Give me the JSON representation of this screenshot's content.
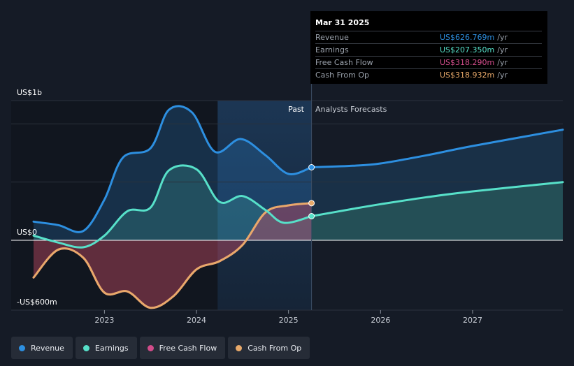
{
  "chart_data": {
    "type": "line",
    "y_labels": {
      "top": "US$1b",
      "zero": "US$0",
      "bottom": "-US$600m"
    },
    "ylim": [
      -600,
      1200
    ],
    "xlim": [
      2022.23,
      2027.98
    ],
    "x_ticks": [
      2023,
      2024,
      2025,
      2026,
      2027
    ],
    "x_tick_labels": [
      "2023",
      "2024",
      "2025",
      "2026",
      "2027"
    ],
    "divider_x": 2025.25,
    "past_start_x": 2024.23,
    "section_labels": {
      "past": "Past",
      "forecast": "Analysts Forecasts"
    },
    "series": [
      {
        "name": "Revenue",
        "color": "#2d8fe0",
        "points": [
          [
            2022.23,
            160
          ],
          [
            2022.5,
            130
          ],
          [
            2022.77,
            80
          ],
          [
            2023.0,
            350
          ],
          [
            2023.2,
            710
          ],
          [
            2023.5,
            790
          ],
          [
            2023.7,
            1120
          ],
          [
            2023.95,
            1100
          ],
          [
            2024.2,
            760
          ],
          [
            2024.48,
            870
          ],
          [
            2024.75,
            730
          ],
          [
            2025.0,
            570
          ],
          [
            2025.25,
            627
          ]
        ],
        "forecast": [
          [
            2025.25,
            627
          ],
          [
            2025.7,
            640
          ],
          [
            2026.0,
            660
          ],
          [
            2026.5,
            730
          ],
          [
            2027.0,
            810
          ],
          [
            2027.98,
            950
          ]
        ]
      },
      {
        "name": "Earnings",
        "color": "#57e0c9",
        "points": [
          [
            2022.23,
            40
          ],
          [
            2022.5,
            -20
          ],
          [
            2022.77,
            -60
          ],
          [
            2023.0,
            40
          ],
          [
            2023.25,
            250
          ],
          [
            2023.5,
            280
          ],
          [
            2023.7,
            600
          ],
          [
            2024.0,
            610
          ],
          [
            2024.25,
            330
          ],
          [
            2024.5,
            380
          ],
          [
            2024.75,
            260
          ],
          [
            2024.95,
            150
          ],
          [
            2025.25,
            207
          ]
        ],
        "forecast": [
          [
            2025.25,
            207
          ],
          [
            2025.7,
            270
          ],
          [
            2026.0,
            310
          ],
          [
            2026.5,
            370
          ],
          [
            2027.0,
            420
          ],
          [
            2027.98,
            500
          ]
        ]
      },
      {
        "name": "Free Cash Flow",
        "color": "#d14c8a",
        "points": [
          [
            2022.23,
            -320
          ],
          [
            2022.5,
            -80
          ],
          [
            2022.77,
            -150
          ],
          [
            2023.0,
            -450
          ],
          [
            2023.25,
            -440
          ],
          [
            2023.5,
            -580
          ],
          [
            2023.75,
            -480
          ],
          [
            2024.0,
            -250
          ],
          [
            2024.25,
            -180
          ],
          [
            2024.5,
            -40
          ],
          [
            2024.75,
            240
          ],
          [
            2025.0,
            300
          ],
          [
            2025.25,
            318
          ]
        ],
        "forecast": []
      },
      {
        "name": "Cash From Op",
        "color": "#e8a96a",
        "points": [
          [
            2022.23,
            -320
          ],
          [
            2022.5,
            -80
          ],
          [
            2022.77,
            -150
          ],
          [
            2023.0,
            -450
          ],
          [
            2023.25,
            -440
          ],
          [
            2023.5,
            -580
          ],
          [
            2023.75,
            -480
          ],
          [
            2024.0,
            -250
          ],
          [
            2024.25,
            -180
          ],
          [
            2024.5,
            -40
          ],
          [
            2024.75,
            240
          ],
          [
            2025.0,
            300
          ],
          [
            2025.25,
            319
          ]
        ],
        "forecast": []
      }
    ]
  },
  "tooltip": {
    "date": "Mar 31 2025",
    "rows": [
      {
        "label": "Revenue",
        "value": "US$626.769m",
        "unit": "/yr",
        "color": "#2d8fe0"
      },
      {
        "label": "Earnings",
        "value": "US$207.350m",
        "unit": "/yr",
        "color": "#57e0c9"
      },
      {
        "label": "Free Cash Flow",
        "value": "US$318.290m",
        "unit": "/yr",
        "color": "#d14c8a"
      },
      {
        "label": "Cash From Op",
        "value": "US$318.932m",
        "unit": "/yr",
        "color": "#e8a96a"
      }
    ]
  },
  "legend": [
    {
      "label": "Revenue",
      "color": "#2d8fe0"
    },
    {
      "label": "Earnings",
      "color": "#57e0c9"
    },
    {
      "label": "Free Cash Flow",
      "color": "#d14c8a"
    },
    {
      "label": "Cash From Op",
      "color": "#e8a96a"
    }
  ]
}
